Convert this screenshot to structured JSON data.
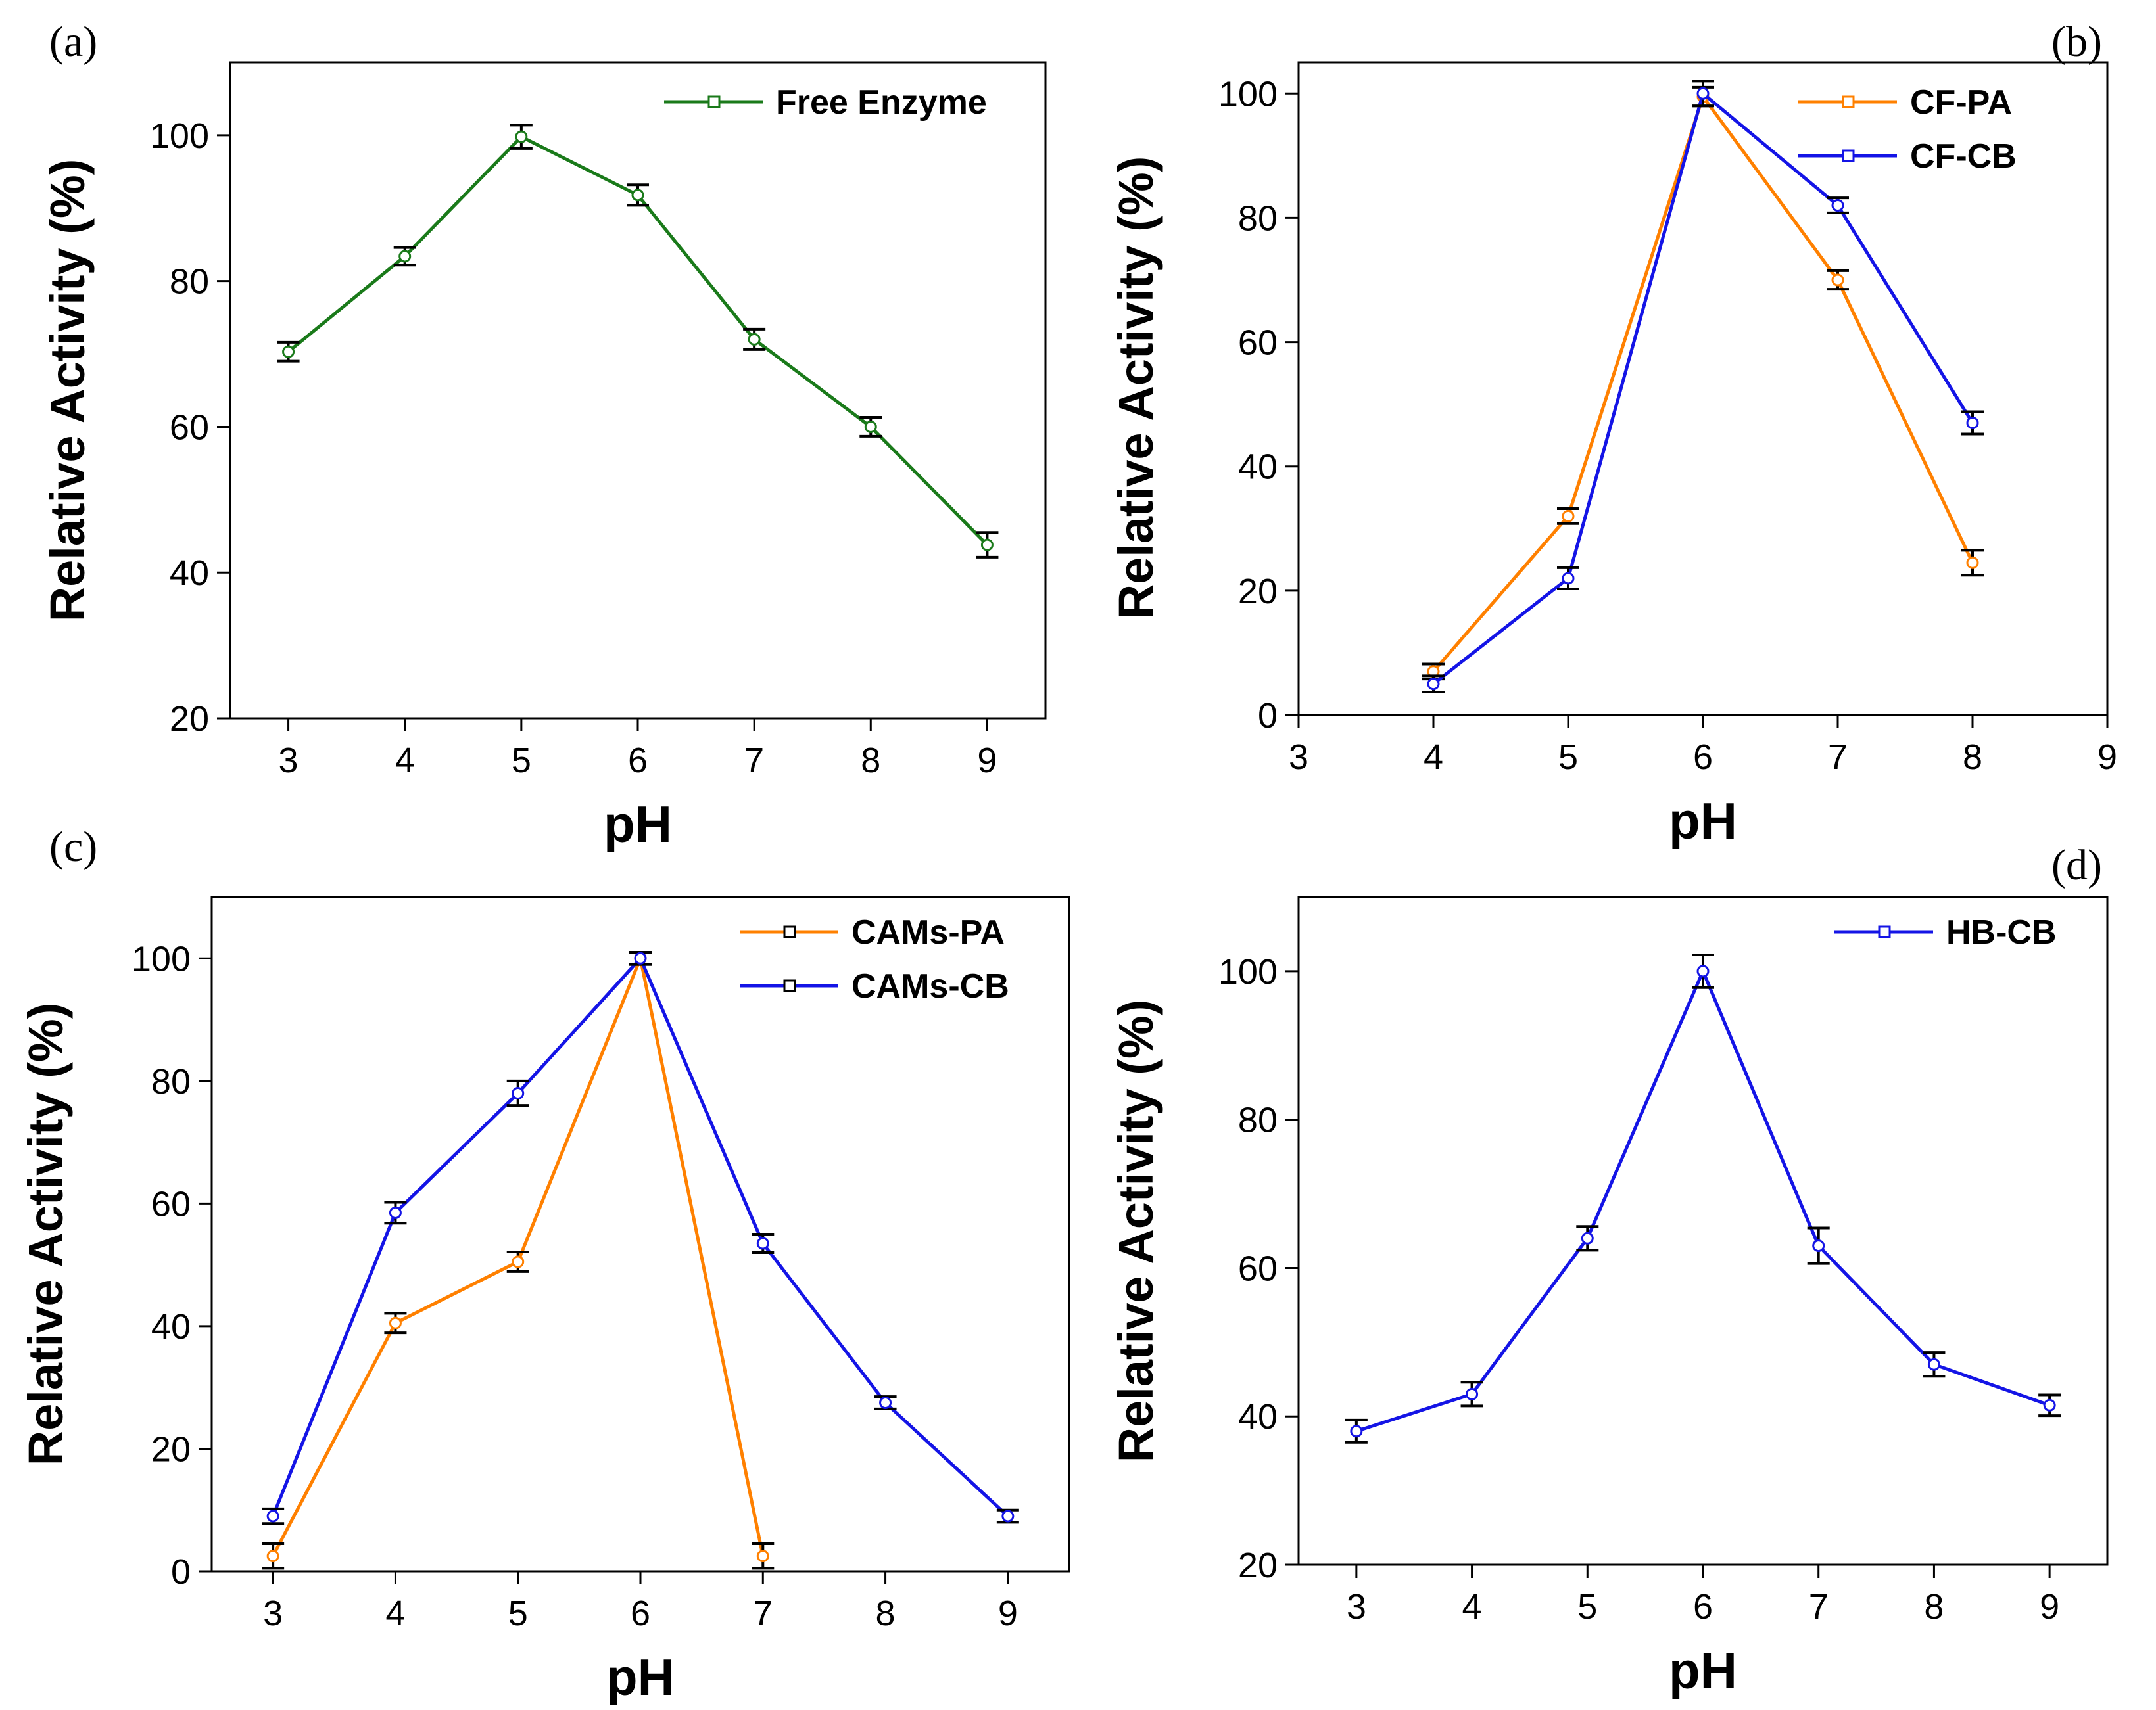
{
  "chart_data": [
    {
      "panel_label": "(a)",
      "type": "line",
      "xlabel": "pH",
      "ylabel": "Relative Activity (%)",
      "xlim": [
        2.5,
        9.5
      ],
      "ylim": [
        20,
        110
      ],
      "xticks": [
        "3",
        "4",
        "5",
        "6",
        "7",
        "8",
        "9"
      ],
      "yticks": [
        "20",
        "40",
        "60",
        "80",
        "100"
      ],
      "legend_position": "top-right",
      "series": [
        {
          "name": "Free Enzyme",
          "color": "#1a7a1a",
          "x": [
            3,
            4,
            5,
            6,
            7,
            8,
            9
          ],
          "y": [
            70.3,
            83.4,
            99.8,
            91.8,
            72.0,
            60.0,
            43.8
          ],
          "err": [
            1.3,
            1.2,
            1.6,
            1.4,
            1.4,
            1.3,
            1.7
          ]
        }
      ]
    },
    {
      "panel_label": "(b)",
      "type": "line",
      "xlabel": "pH",
      "ylabel": "Relative Activity (%)",
      "xlim": [
        3,
        9
      ],
      "ylim": [
        0,
        105
      ],
      "xticks": [
        "3",
        "4",
        "5",
        "6",
        "7",
        "8",
        "9"
      ],
      "yticks": [
        "0",
        "20",
        "40",
        "60",
        "80",
        "100"
      ],
      "legend_position": "top-right",
      "series": [
        {
          "name": "CF-PA",
          "color": "#ff8000",
          "x": [
            4,
            5,
            6,
            7,
            8
          ],
          "y": [
            7.0,
            32.0,
            99.5,
            70.0,
            24.5
          ],
          "err": [
            1.2,
            1.2,
            1.5,
            1.5,
            2.0
          ]
        },
        {
          "name": "CF-CB",
          "color": "#1414e6",
          "x": [
            4,
            5,
            6,
            7,
            8
          ],
          "y": [
            5.0,
            22.0,
            100.0,
            82.0,
            47.0
          ],
          "err": [
            1.3,
            1.7,
            2.0,
            1.2,
            1.8
          ]
        }
      ]
    },
    {
      "panel_label": "(c)",
      "type": "line",
      "xlabel": "pH",
      "ylabel": "Relative Activity (%)",
      "xlim": [
        2.5,
        9.5
      ],
      "ylim": [
        0,
        110
      ],
      "xticks": [
        "3",
        "4",
        "5",
        "6",
        "7",
        "8",
        "9"
      ],
      "yticks": [
        "0",
        "20",
        "40",
        "60",
        "80",
        "100"
      ],
      "legend_position": "top-right",
      "series": [
        {
          "name": "CAMs-PA",
          "color": "#ff8000",
          "x": [
            3,
            4,
            5,
            6,
            7
          ],
          "y": [
            2.5,
            40.5,
            50.5,
            100.0,
            2.5
          ],
          "err": [
            2.0,
            1.6,
            1.6,
            1.0,
            2.0
          ]
        },
        {
          "name": "CAMs-CB",
          "color": "#1414e6",
          "x": [
            3,
            4,
            5,
            6,
            7,
            8,
            9
          ],
          "y": [
            9.0,
            58.5,
            78.0,
            100.0,
            53.5,
            27.5,
            9.0
          ],
          "err": [
            1.2,
            1.7,
            2.0,
            1.0,
            1.5,
            1.0,
            1.0
          ]
        }
      ]
    },
    {
      "panel_label": "(d)",
      "type": "line",
      "xlabel": "pH",
      "ylabel": "Relative Activity (%)",
      "xlim": [
        2.5,
        9.5
      ],
      "ylim": [
        20,
        110
      ],
      "xticks": [
        "3",
        "4",
        "5",
        "6",
        "7",
        "8",
        "9"
      ],
      "yticks": [
        "20",
        "40",
        "60",
        "80",
        "100"
      ],
      "legend_position": "top-right",
      "series": [
        {
          "name": "HB-CB",
          "color": "#1414e6",
          "x": [
            3,
            4,
            5,
            6,
            7,
            8,
            9
          ],
          "y": [
            38.0,
            43.0,
            64.0,
            100.0,
            63.0,
            47.0,
            41.5
          ],
          "err": [
            1.5,
            1.6,
            1.6,
            2.2,
            2.4,
            1.6,
            1.4
          ]
        }
      ]
    }
  ]
}
